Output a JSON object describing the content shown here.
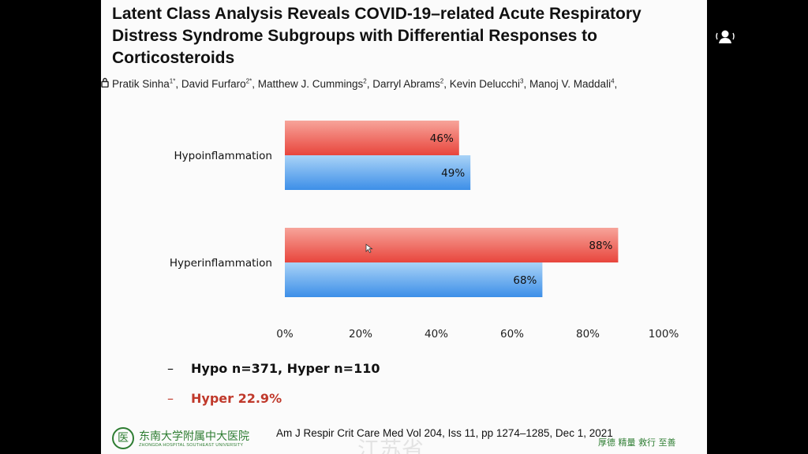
{
  "slide": {
    "title": "Latent Class Analysis Reveals COVID-19–related Acute Respiratory Distress Syndrome Subgroups with Differential Responses to Corticosteroids",
    "authors": [
      {
        "name": "Pratik Sinha",
        "sup": "1*"
      },
      {
        "name": "David Furfaro",
        "sup": "2*"
      },
      {
        "name": "Matthew J. Cummings",
        "sup": "2"
      },
      {
        "name": "Darryl Abrams",
        "sup": "2"
      },
      {
        "name": "Kevin Delucchi",
        "sup": "3"
      },
      {
        "name": "Manoj V. Maddali",
        "sup": "4"
      }
    ],
    "lock_icon": "lock-icon",
    "bullets": [
      {
        "dash": "–",
        "text": "Hypo n=371, Hyper n=110"
      },
      {
        "dash": "–",
        "text": "Hyper 22.9%"
      }
    ],
    "citation": "Am J Respir Crit Care Med Vol 204, Iss 11, pp 1274–1285, Dec 1, 2021",
    "logo_cn": "东南大学附属中大医院",
    "logo_en": "ZHONGDA HOSPITAL SOUTHEAST UNIVERSITY",
    "logo_mark": "医",
    "motto": "厚德  精量  救行  至善",
    "watermark": "江苏省"
  },
  "colors": {
    "red_bar": "#e8453c",
    "blue_bar": "#3d8fe8",
    "bullet_red": "#c0392b",
    "logo_green": "#2e7d32"
  },
  "side_icon": "person-speaker-icon",
  "chart_data": {
    "type": "bar",
    "orientation": "horizontal",
    "categories": [
      "Hypoinflammation",
      "Hyperinflammation"
    ],
    "series": [
      {
        "values": [
          46,
          88
        ],
        "labels": [
          "46%",
          "88%"
        ],
        "color": "#e8453c"
      },
      {
        "values": [
          49,
          68
        ],
        "labels": [
          "49%",
          "68%"
        ],
        "color": "#3d8fe8"
      }
    ],
    "xlim": [
      0,
      100
    ],
    "xticks": [
      "0%",
      "20%",
      "40%",
      "60%",
      "80%",
      "100%"
    ],
    "grid": false,
    "legend": false
  }
}
